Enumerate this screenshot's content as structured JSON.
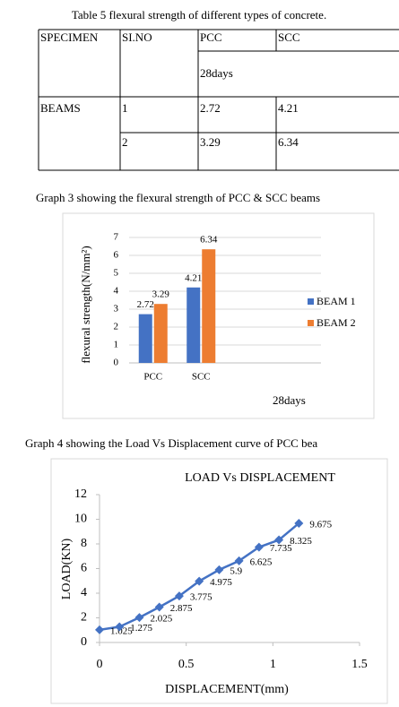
{
  "table_caption": "Table 5 flexural strength of different types of concrete.",
  "table": {
    "header": [
      "SPECIMEN",
      "SI.NO",
      "PCC",
      "SCC"
    ],
    "subheader": "28days",
    "group": "BEAMS",
    "rows": [
      [
        "1",
        "2.72",
        "4.21"
      ],
      [
        "2",
        "3.29",
        "6.34"
      ]
    ]
  },
  "chart_data": [
    {
      "type": "bar",
      "caption": "Graph 3 showing the flexural strength of PCC & SCC beams",
      "ylabel": "flexural strength(N/mm²)",
      "annotation": "28days",
      "categories": [
        "PCC",
        "SCC",
        null,
        null
      ],
      "series": [
        {
          "name": "BEAM 1",
          "color": "#4472c4",
          "values": [
            2.72,
            4.21,
            null,
            null
          ]
        },
        {
          "name": "BEAM 2",
          "color": "#ed7d31",
          "values": [
            3.29,
            6.34,
            null,
            null
          ]
        }
      ],
      "ylim": [
        0,
        7
      ],
      "yticks": [
        0,
        1,
        2,
        3,
        4,
        5,
        6,
        7
      ],
      "grid": true,
      "legend": "right"
    },
    {
      "type": "line",
      "caption": "Graph 4 showing the Load Vs Displacement curve of PCC bea",
      "title": "LOAD  Vs  DISPLACEMENT",
      "xlabel": "DISPLACEMENT(mm)",
      "ylabel": "LOAD(KN)",
      "x": [
        0,
        0.115,
        0.23,
        0.345,
        0.46,
        0.575,
        0.69,
        0.805,
        0.92,
        1.035,
        1.15
      ],
      "series": [
        {
          "name": "LOAD",
          "color": "#4472c4",
          "values": [
            1.025,
            1.275,
            2.025,
            2.875,
            3.775,
            4.975,
            5.9,
            6.625,
            7.735,
            8.325,
            9.675
          ]
        }
      ],
      "xlim": [
        0,
        1.5
      ],
      "xticks": [
        0,
        0.5,
        1,
        1.5
      ],
      "ylim": [
        0,
        12
      ],
      "yticks": [
        0,
        2,
        4,
        6,
        8,
        10,
        12
      ],
      "grid": false
    }
  ]
}
